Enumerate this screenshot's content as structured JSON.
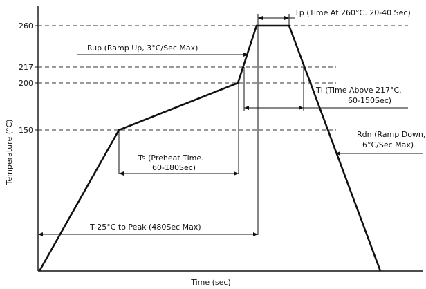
{
  "chart_data": {
    "type": "line",
    "xlabel": "Time (sec)",
    "ylabel": "Temperature (°C)",
    "ylim": [
      25,
      270
    ],
    "y_ticks": [
      "260",
      "217",
      "200",
      "150"
    ],
    "profile": [
      {
        "x": 0,
        "y": 25
      },
      {
        "x": 115,
        "y": 150
      },
      {
        "x": 287,
        "y": 200
      },
      {
        "x": 314,
        "y": 260
      },
      {
        "x": 361,
        "y": 260
      },
      {
        "x": 493,
        "y": 25
      }
    ],
    "annotations": {
      "tp": "Tp (Time At 260°C. 20-40 Sec)",
      "rup": "Rup (Ramp Up, 3°C/Sec Max)",
      "tl_line1": "Tl (Time Above 217°C.",
      "tl_line2": "60-150Sec)",
      "rdn_line1": "Rdn (Ramp Down,",
      "rdn_line2": "6°C/Sec Max)",
      "ts_line1": "Ts (Preheat Time.",
      "ts_line2": "60-180Sec)",
      "t25": "T 25°C to Peak (480Sec Max)"
    },
    "grid": false,
    "colors": {
      "line": "#111111",
      "dashed": "#333333"
    }
  }
}
